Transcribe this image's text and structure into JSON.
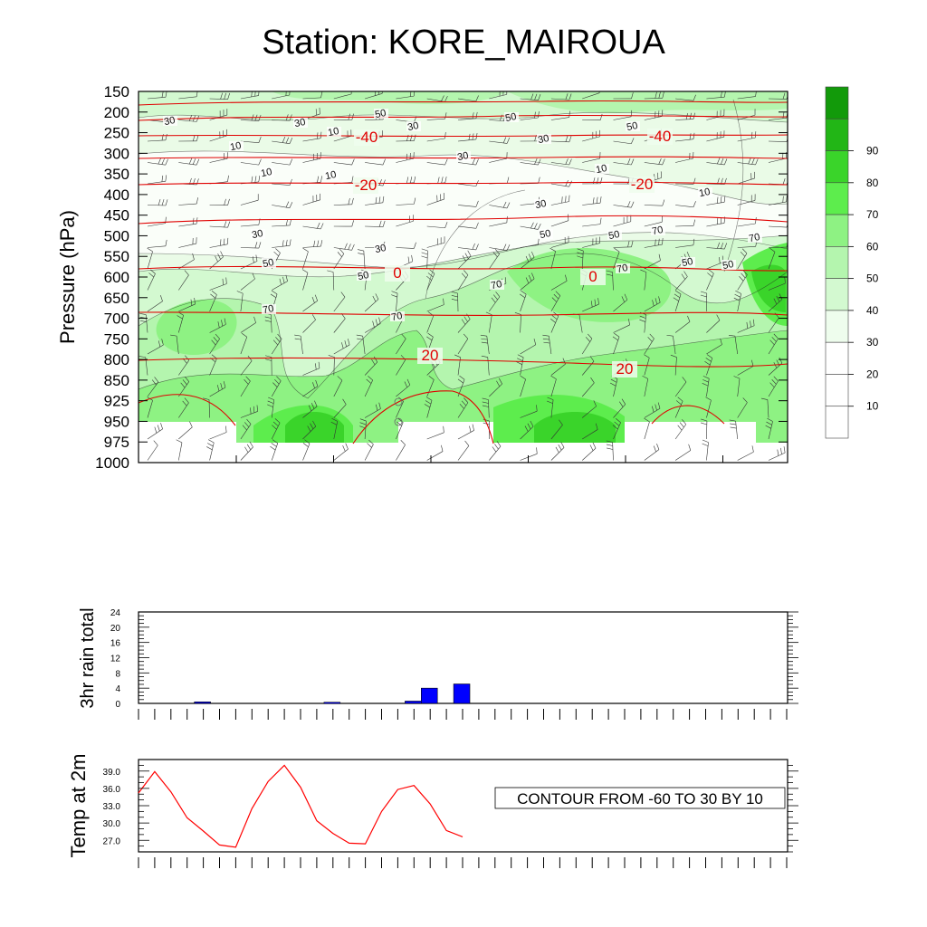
{
  "title": "Station: KORE_MAIROUA",
  "chart_data": [
    {
      "type": "heatmap",
      "ylabel": "Pressure (hPa)",
      "y_ticks": [
        150,
        200,
        250,
        300,
        350,
        400,
        450,
        500,
        550,
        600,
        650,
        700,
        750,
        800,
        850,
        925,
        950,
        975,
        1000
      ],
      "colorbar": {
        "levels": [
          10,
          20,
          30,
          40,
          50,
          60,
          70,
          80,
          90
        ],
        "colors": [
          "#ffffff",
          "#ffffff",
          "#ffffff",
          "#eefded",
          "#d3f9d0",
          "#b4f5ae",
          "#8ef283",
          "#5ded4d",
          "#3ad42a",
          "#22b616",
          "#129a0a"
        ]
      },
      "temperature_contour_labels": [
        "-40",
        "-40",
        "-20",
        "-20",
        "0",
        "0",
        "20",
        "20"
      ],
      "humidity_contour_labels": [
        "30",
        "30",
        "30",
        "30",
        "50",
        "50",
        "50",
        "10",
        "10",
        "10",
        "10",
        "30",
        "30",
        "50",
        "50",
        "70",
        "70",
        "10",
        "10",
        "30",
        "30",
        "50",
        "50",
        "70",
        "70",
        "50",
        "50",
        "70",
        "70"
      ],
      "contour_info": "CONTOUR FROM -60 TO 30 BY 10"
    },
    {
      "type": "bar",
      "ylabel": "3hr rain total",
      "ylim": [
        0,
        24
      ],
      "y_ticks": [
        0,
        4,
        8,
        12,
        16,
        20,
        24
      ],
      "x": [
        3,
        11,
        16,
        17,
        19
      ],
      "values": [
        0.4,
        0.3,
        0.6,
        4.0,
        5.1
      ],
      "bar_color": "#0000ff"
    },
    {
      "type": "line",
      "ylabel": "Temp at 2m",
      "ylim": [
        25.0,
        41.0
      ],
      "y_ticks": [
        "27.0",
        "30.0",
        "33.0",
        "36.0",
        "39.0"
      ],
      "x": [
        0,
        1,
        2,
        3,
        4,
        5,
        6,
        7,
        8,
        9,
        10,
        11,
        12,
        13,
        14,
        15,
        16,
        17,
        18,
        19,
        20
      ],
      "values": [
        35.2,
        38.9,
        35.4,
        30.9,
        28.6,
        26.2,
        25.8,
        32.5,
        37.2,
        40.0,
        36.2,
        30.4,
        28.2,
        26.5,
        26.4,
        32.0,
        35.8,
        36.5,
        33.3,
        28.7,
        27.6
      ],
      "line_color": "#ff0000"
    }
  ]
}
